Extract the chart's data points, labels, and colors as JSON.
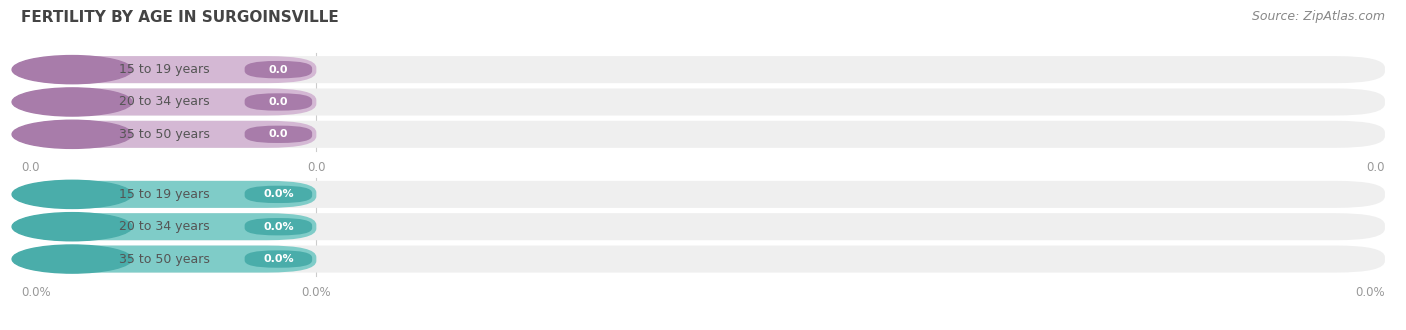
{
  "title": "FERTILITY BY AGE IN SURGOINSVILLE",
  "source": "Source: ZipAtlas.com",
  "top_group": {
    "labels": [
      "15 to 19 years",
      "20 to 34 years",
      "35 to 50 years"
    ],
    "values": [
      0.0,
      0.0,
      0.0
    ],
    "bar_color": "#d4b8d4",
    "circle_color": "#a87caa",
    "value_label": "0.0",
    "tick_labels": [
      "0.0",
      "0.0",
      "0.0"
    ]
  },
  "bottom_group": {
    "labels": [
      "15 to 19 years",
      "20 to 34 years",
      "35 to 50 years"
    ],
    "values": [
      0.0,
      0.0,
      0.0
    ],
    "bar_color": "#7fccc8",
    "circle_color": "#4aadaa",
    "value_label": "0.0%",
    "tick_labels": [
      "0.0%",
      "0.0%",
      "0.0%"
    ]
  },
  "bg_color": "#ffffff",
  "bar_bg_color": "#efefef",
  "title_fontsize": 11,
  "source_fontsize": 9,
  "label_fontsize": 9,
  "value_fontsize": 8,
  "tick_fontsize": 8.5
}
